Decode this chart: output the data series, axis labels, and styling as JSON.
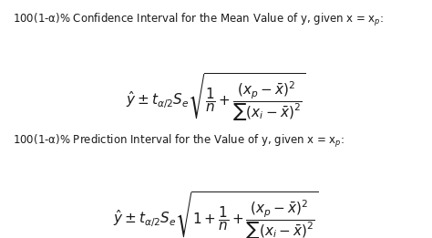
{
  "background_color": "#ffffff",
  "figsize": [
    4.74,
    2.61
  ],
  "dpi": 100,
  "title1": "100(1-α)% Confidence Interval for the Mean Value of y, given x = x$_p$:",
  "formula1": "$\\hat{y} \\pm t_{\\alpha/2}S_e\\sqrt{\\dfrac{1}{n} + \\dfrac{(x_p - \\bar{x})^2}{\\sum(x_i - \\bar{x})^2}}$",
  "title2": "100(1-α)% Prediction Interval for the Value of y, given x = x$_p$:",
  "formula2": "$\\hat{y} \\pm t_{\\alpha/2}S_e\\sqrt{1 + \\dfrac{1}{n} + \\dfrac{(x_p - \\bar{x})^2}{\\sum(x_i - \\bar{x})^2}}$",
  "text_color": "#1a1a1a",
  "title_fontsize": 8.5,
  "formula_fontsize": 11.0
}
